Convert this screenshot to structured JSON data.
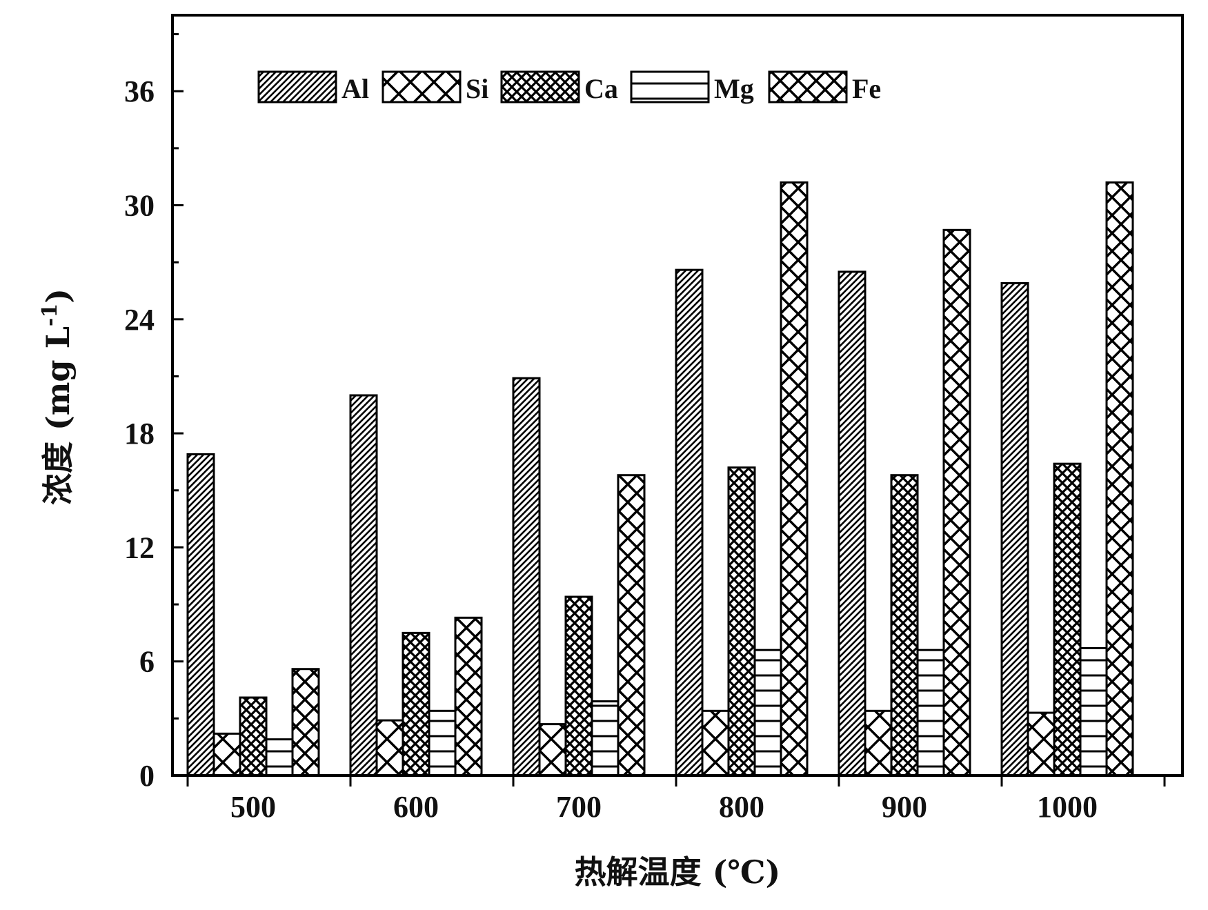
{
  "chart_data": {
    "type": "bar",
    "title": "",
    "xlabel": "热解温度 (℃)",
    "ylabel_main": "浓度 (mg L",
    "ylabel_sup": "-1",
    "ylabel_close": ")",
    "categories": [
      "500",
      "600",
      "700",
      "800",
      "900",
      "1000"
    ],
    "ylim": [
      0,
      40
    ],
    "yticks": [
      0,
      6,
      12,
      18,
      24,
      30,
      36
    ],
    "legend_position": "top-left",
    "grid": false,
    "series": [
      {
        "name": "Al",
        "pattern": "diagonal-hatch",
        "values": [
          16.9,
          20.0,
          20.9,
          26.6,
          26.5,
          25.9
        ]
      },
      {
        "name": "Si",
        "pattern": "sparse-crosshatch",
        "values": [
          2.2,
          2.9,
          2.7,
          3.4,
          3.4,
          3.3
        ]
      },
      {
        "name": "Ca",
        "pattern": "dense-crosshatch",
        "values": [
          4.1,
          7.5,
          9.4,
          16.2,
          15.8,
          16.4
        ]
      },
      {
        "name": "Mg",
        "pattern": "horizontal-lines",
        "values": [
          1.9,
          3.4,
          3.9,
          6.6,
          6.6,
          6.7
        ]
      },
      {
        "name": "Fe",
        "pattern": "large-crosshatch",
        "values": [
          5.6,
          8.3,
          15.8,
          31.2,
          28.7,
          31.2
        ]
      }
    ]
  }
}
